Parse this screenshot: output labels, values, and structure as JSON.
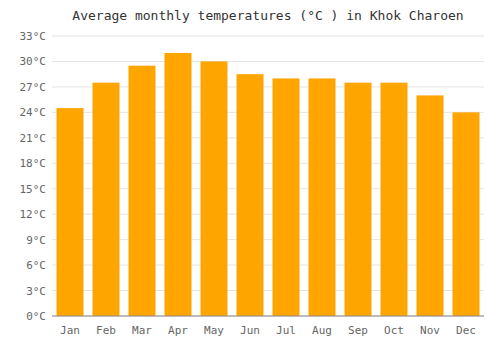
{
  "chart_data": {
    "type": "bar",
    "title": "Average monthly temperatures (°C ) in Khok Charoen",
    "categories": [
      "Jan",
      "Feb",
      "Mar",
      "Apr",
      "May",
      "Jun",
      "Jul",
      "Aug",
      "Sep",
      "Oct",
      "Nov",
      "Dec"
    ],
    "values": [
      24.5,
      27.5,
      29.5,
      31.0,
      30.0,
      28.5,
      28.0,
      28.0,
      27.5,
      27.5,
      26.0,
      24.0
    ],
    "color": "#FFA500",
    "ylim": [
      0,
      33
    ],
    "yticks": [
      {
        "value": 0,
        "label": "0°C"
      },
      {
        "value": 3,
        "label": "3°C"
      },
      {
        "value": 6,
        "label": "6°C"
      },
      {
        "value": 9,
        "label": "9°C"
      },
      {
        "value": 12,
        "label": "12°C"
      },
      {
        "value": 15,
        "label": "15°C"
      },
      {
        "value": 18,
        "label": "18°C"
      },
      {
        "value": 21,
        "label": "21°C"
      },
      {
        "value": 24,
        "label": "24°C"
      },
      {
        "value": 27,
        "label": "27°C"
      },
      {
        "value": 30,
        "label": "30°C"
      },
      {
        "value": 33,
        "label": "33°C"
      }
    ],
    "grid": true
  }
}
